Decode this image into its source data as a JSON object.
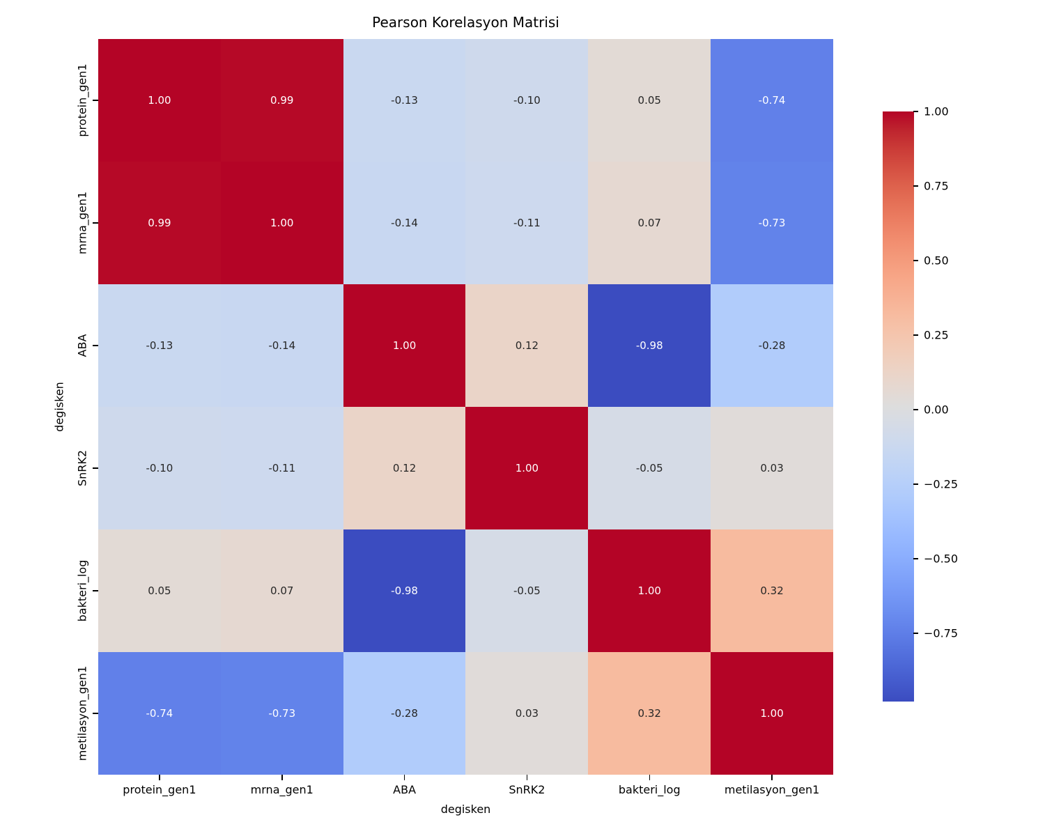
{
  "title": "Pearson Korelasyon Matrisi",
  "x_axis": {
    "label": "degisken"
  },
  "y_axis": {
    "label": "degisken"
  },
  "background_color": "#ffffff",
  "chart_data": {
    "type": "heatmap",
    "title": "Pearson Korelasyon Matrisi",
    "xlabel": "degisken",
    "ylabel": "degisken",
    "categories": [
      "protein_gen1",
      "mrna_gen1",
      "ABA",
      "SnRK2",
      "bakteri_log",
      "metilasyon_gen1"
    ],
    "matrix": [
      [
        1.0,
        0.99,
        -0.13,
        -0.1,
        0.05,
        -0.74
      ],
      [
        0.99,
        1.0,
        -0.14,
        -0.11,
        0.07,
        -0.73
      ],
      [
        -0.13,
        -0.14,
        1.0,
        0.12,
        -0.98,
        -0.28
      ],
      [
        -0.1,
        -0.11,
        0.12,
        1.0,
        -0.05,
        0.03
      ],
      [
        0.05,
        0.07,
        -0.98,
        -0.05,
        1.0,
        0.32
      ],
      [
        -0.74,
        -0.73,
        -0.28,
        0.03,
        0.32,
        1.0
      ]
    ],
    "value_decimals": 2,
    "vmin": -0.98,
    "vmax": 1.0,
    "colormap": "coolwarm",
    "grid": false,
    "legend_position": "right-colorbar",
    "colorbar_tick_values": [
      1.0,
      0.75,
      0.5,
      0.25,
      0.0,
      -0.25,
      -0.5,
      -0.75
    ],
    "colorbar_tick_labels": [
      "1.00",
      "0.75",
      "0.50",
      "0.25",
      "0.00",
      "−0.25",
      "−0.50",
      "−0.75"
    ],
    "colormap_stops": [
      "#3b4cc0",
      "#445acc",
      "#4d68d7",
      "#5775e1",
      "#6282ea",
      "#6c8ff1",
      "#779af7",
      "#82a5fb",
      "#8db0fe",
      "#98b9ff",
      "#a3c2fe",
      "#aecafc",
      "#b8d0f9",
      "#c2d5f4",
      "#ccd9ee",
      "#d5dbe6",
      "#dddddd",
      "#e5d8d1",
      "#ecd3c5",
      "#f1ccb8",
      "#f5c4ac",
      "#f7bb9f",
      "#f7b093",
      "#f7a687",
      "#f49a7b",
      "#f18d6f",
      "#ec7f63",
      "#e57157",
      "#dd614c",
      "#d44e41",
      "#ca3b37",
      "#be242e",
      "#b40426"
    ],
    "annotation_colors": {
      "light_text": "#ffffff",
      "dark_text": "#262626"
    }
  }
}
